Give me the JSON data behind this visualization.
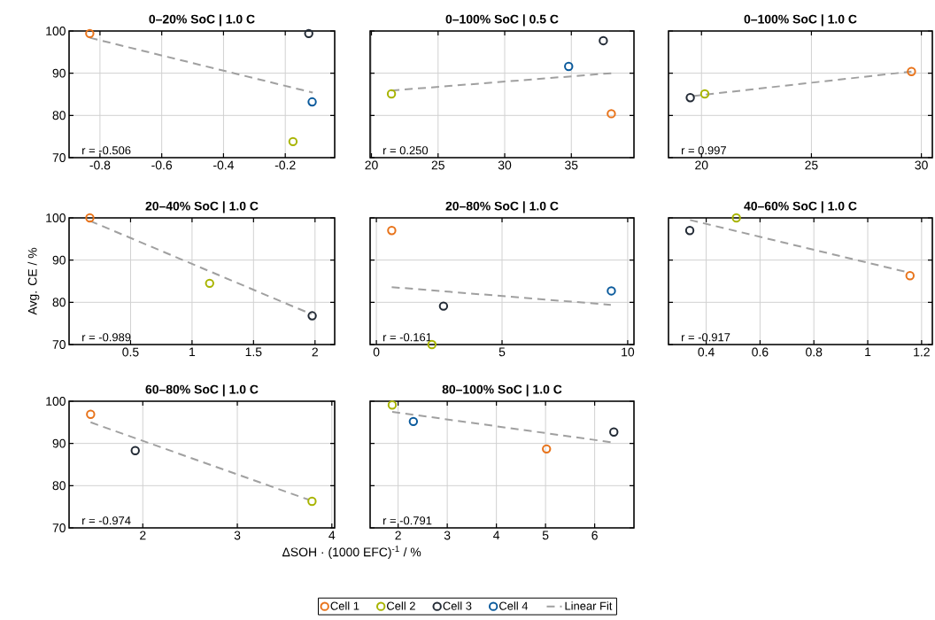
{
  "chart_data": [
    {
      "type": "scatter",
      "title": "0–20% SoC | 1.0 C",
      "xlim": [
        -0.9,
        -0.04
      ],
      "xticks": [
        -0.8,
        -0.6,
        -0.4,
        -0.2
      ],
      "ylim": [
        70,
        100
      ],
      "yticks": [
        70,
        80,
        90,
        100
      ],
      "grid": true,
      "marker": "circle",
      "annotations": [
        "r = -0.506"
      ],
      "series": [
        {
          "color": "#e8731a",
          "x": [
            -0.833
          ],
          "values": [
            99.4
          ]
        },
        {
          "color": "#a8b400",
          "x": [
            -0.175
          ],
          "values": [
            73.8
          ]
        },
        {
          "color": "#222a35",
          "x": [
            -0.124
          ],
          "values": [
            99.4
          ]
        },
        {
          "color": "#0a5a9c",
          "x": [
            -0.113
          ],
          "values": [
            83.2
          ]
        },
        {
          "type": "line",
          "marker": "none",
          "line_style": "dashed",
          "color": "#a0a0a0",
          "x": [
            -0.833,
            -0.111
          ],
          "values": [
            98.4,
            85.4
          ]
        }
      ]
    },
    {
      "type": "scatter",
      "title": "0–100% SoC | 0.5 C",
      "xlim": [
        19.9,
        39.7
      ],
      "xticks": [
        20,
        25,
        30,
        35
      ],
      "ylim": [
        70,
        100
      ],
      "yticks": [
        70,
        80,
        90,
        100
      ],
      "grid": true,
      "marker": "circle",
      "tick_labels": "x",
      "annotations": [
        "r = 0.250"
      ],
      "series": [
        {
          "color": "#e8731a",
          "x": [
            38.0
          ],
          "values": [
            80.4
          ]
        },
        {
          "color": "#a8b400",
          "x": [
            21.5
          ],
          "values": [
            85.1
          ]
        },
        {
          "color": "#222a35",
          "x": [
            37.4
          ],
          "values": [
            97.7
          ]
        },
        {
          "color": "#0a5a9c",
          "x": [
            34.8
          ],
          "values": [
            91.6
          ]
        },
        {
          "type": "line",
          "marker": "none",
          "line_style": "dashed",
          "color": "#a0a0a0",
          "x": [
            21.5,
            38.0
          ],
          "values": [
            85.9,
            90.0
          ]
        }
      ]
    },
    {
      "type": "scatter",
      "title": "0–100% SoC | 1.0 C",
      "xlim": [
        18.5,
        30.5
      ],
      "xticks": [
        20,
        25,
        30
      ],
      "ylim": [
        70,
        100
      ],
      "yticks": [
        70,
        80,
        90,
        100
      ],
      "grid": true,
      "marker": "circle",
      "tick_labels": "x",
      "annotations": [
        "r = 0.997"
      ],
      "series": [
        {
          "color": "#e8731a",
          "x": [
            29.55
          ],
          "values": [
            90.4
          ]
        },
        {
          "color": "#a8b400",
          "x": [
            20.15
          ],
          "values": [
            85.1
          ]
        },
        {
          "color": "#222a35",
          "x": [
            19.49
          ],
          "values": [
            84.2
          ]
        },
        {
          "type": "line",
          "marker": "none",
          "line_style": "dashed",
          "color": "#a0a0a0",
          "x": [
            19.6,
            29.55
          ],
          "values": [
            84.6,
            90.4
          ]
        }
      ]
    },
    {
      "type": "scatter",
      "title": "20–40% SoC | 1.0 C",
      "ylabel": "Avg. CE / %",
      "xlim": [
        0,
        2.16
      ],
      "xticks": [
        0.5,
        1,
        1.5,
        2
      ],
      "ylim": [
        70,
        100
      ],
      "yticks": [
        70,
        80,
        90,
        100
      ],
      "grid": true,
      "marker": "circle",
      "annotations": [
        "r = -0.989"
      ],
      "series": [
        {
          "color": "#e8731a",
          "x": [
            0.169
          ],
          "values": [
            100.0
          ]
        },
        {
          "color": "#a8b400",
          "x": [
            1.143
          ],
          "values": [
            84.5
          ]
        },
        {
          "color": "#222a35",
          "x": [
            1.977
          ],
          "values": [
            76.8
          ]
        },
        {
          "type": "line",
          "marker": "none",
          "line_style": "dashed",
          "color": "#a0a0a0",
          "x": [
            0.169,
            1.97
          ],
          "values": [
            99.3,
            77.2
          ]
        }
      ]
    },
    {
      "type": "scatter",
      "title": "20–80% SoC | 1.0 C",
      "xlim": [
        -0.25,
        10.25
      ],
      "xticks": [
        0,
        5,
        10
      ],
      "ylim": [
        70,
        100
      ],
      "yticks": [
        70,
        80,
        90,
        100
      ],
      "grid": true,
      "marker": "circle",
      "tick_labels": "x",
      "annotations": [
        "r = -0.161"
      ],
      "series": [
        {
          "color": "#e8731a",
          "x": [
            0.61
          ],
          "values": [
            97.0
          ]
        },
        {
          "color": "#a8b400",
          "x": [
            2.21
          ],
          "values": [
            70.0
          ]
        },
        {
          "color": "#222a35",
          "x": [
            2.67
          ],
          "values": [
            79.1
          ]
        },
        {
          "color": "#0a5a9c",
          "x": [
            9.35
          ],
          "values": [
            82.7
          ]
        },
        {
          "type": "line",
          "marker": "none",
          "line_style": "dashed",
          "color": "#a0a0a0",
          "x": [
            0.61,
            9.33
          ],
          "values": [
            83.6,
            79.4
          ]
        }
      ]
    },
    {
      "type": "scatter",
      "title": "40–60% SoC | 1.0 C",
      "xlim": [
        0.26,
        1.24
      ],
      "xticks": [
        0.4,
        0.6,
        0.8,
        1,
        1.2
      ],
      "ylim": [
        70,
        100
      ],
      "yticks": [
        70,
        80,
        90,
        100
      ],
      "grid": true,
      "marker": "circle",
      "tick_labels": "x",
      "annotations": [
        "r = -0.917"
      ],
      "series": [
        {
          "color": "#e8731a",
          "x": [
            1.157
          ],
          "values": [
            86.3
          ]
        },
        {
          "color": "#a8b400",
          "x": [
            0.512
          ],
          "values": [
            100.0
          ]
        },
        {
          "color": "#222a35",
          "x": [
            0.339
          ],
          "values": [
            97.0
          ]
        },
        {
          "type": "line",
          "marker": "none",
          "line_style": "dashed",
          "color": "#a0a0a0",
          "x": [
            0.34,
            1.155
          ],
          "values": [
            99.5,
            87.0
          ]
        }
      ]
    },
    {
      "type": "scatter",
      "title": "60–80% SoC | 1.0 C",
      "xlim": [
        1.22,
        4.03
      ],
      "xticks": [
        2,
        3,
        4
      ],
      "ylim": [
        70,
        100
      ],
      "yticks": [
        70,
        80,
        90,
        100
      ],
      "grid": true,
      "marker": "circle",
      "annotations": [
        "r = -0.974"
      ],
      "series": [
        {
          "color": "#e8731a",
          "x": [
            1.448
          ],
          "values": [
            96.9
          ]
        },
        {
          "color": "#a8b400",
          "x": [
            3.79
          ],
          "values": [
            76.3
          ]
        },
        {
          "color": "#222a35",
          "x": [
            1.92
          ],
          "values": [
            88.3
          ]
        },
        {
          "type": "line",
          "marker": "none",
          "line_style": "dashed",
          "color": "#a0a0a0",
          "x": [
            1.448,
            3.75
          ],
          "values": [
            95.0,
            76.7
          ]
        }
      ]
    },
    {
      "type": "scatter",
      "title": "80–100% SoC | 1.0 C",
      "xlabel": "ΔSOH · (1000 EFC)$^{-1}$ / %",
      "xlim": [
        1.43,
        6.8
      ],
      "xticks": [
        2,
        3,
        4,
        5,
        6
      ],
      "ylim": [
        70,
        100
      ],
      "yticks": [
        70,
        80,
        90,
        100
      ],
      "grid": true,
      "marker": "circle",
      "tick_labels": "x",
      "legend": "bottom",
      "annotations": [
        "r = -0.791"
      ],
      "series": [
        {
          "name": "Cell 1",
          "color": "#e8731a",
          "x": [
            5.02
          ],
          "values": [
            88.7
          ]
        },
        {
          "name": "Cell 2",
          "color": "#a8b400",
          "x": [
            1.88
          ],
          "values": [
            99.1
          ]
        },
        {
          "name": "Cell 3",
          "color": "#222a35",
          "x": [
            6.39
          ],
          "values": [
            92.7
          ]
        },
        {
          "name": "Cell 4",
          "color": "#0a5a9c",
          "x": [
            2.31
          ],
          "values": [
            95.2
          ]
        },
        {
          "name": "Linear Fit",
          "type": "line",
          "marker": "none",
          "line_style": "dashed",
          "color": "#a0a0a0",
          "x": [
            1.88,
            6.39
          ],
          "values": [
            97.5,
            90.2
          ]
        }
      ]
    }
  ]
}
